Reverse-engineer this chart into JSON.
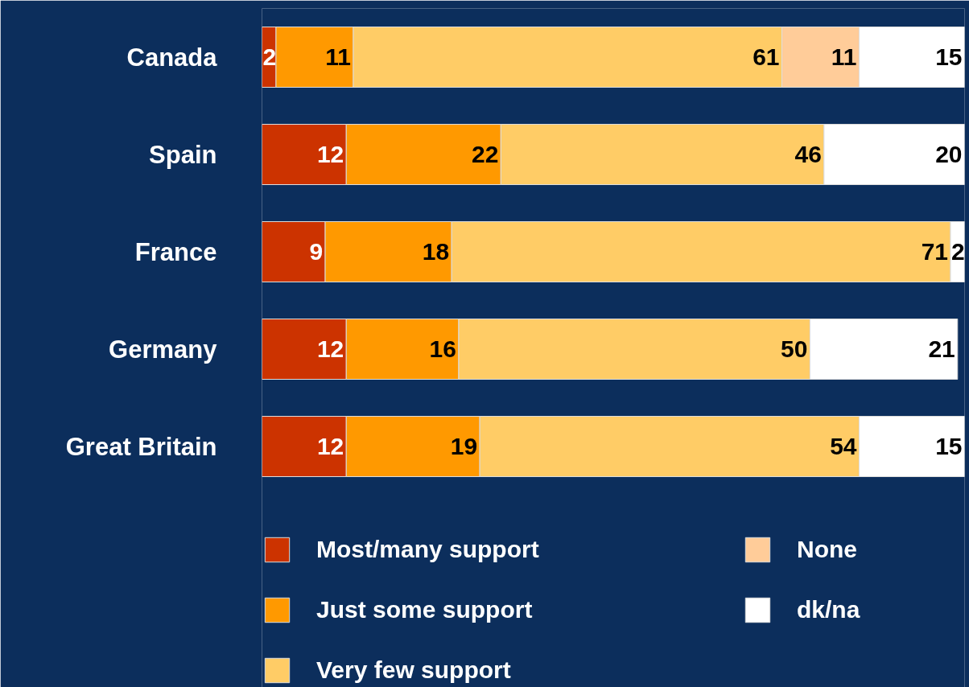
{
  "chart_data": {
    "type": "bar",
    "orientation": "horizontal",
    "stacked": true,
    "data_labels": true,
    "legend": "bottom",
    "grid": false,
    "categories": [
      "Canada",
      "Spain",
      "France",
      "Germany",
      "Great Britain"
    ],
    "series": [
      {
        "name": "Most/many support",
        "color": "#cc3300",
        "values": [
          2,
          12,
          9,
          12,
          12
        ]
      },
      {
        "name": "Just some support",
        "color": "#ff9900",
        "values": [
          11,
          22,
          18,
          16,
          19
        ]
      },
      {
        "name": "Very few support",
        "color": "#ffcc66",
        "values": [
          61,
          46,
          71,
          50,
          54
        ]
      },
      {
        "name": "None",
        "color": "#ffcc99",
        "values": [
          11,
          null,
          null,
          null,
          null
        ]
      },
      {
        "name": "dk/na",
        "color": "#ffffff",
        "values": [
          15,
          20,
          2,
          21,
          15
        ]
      }
    ]
  }
}
